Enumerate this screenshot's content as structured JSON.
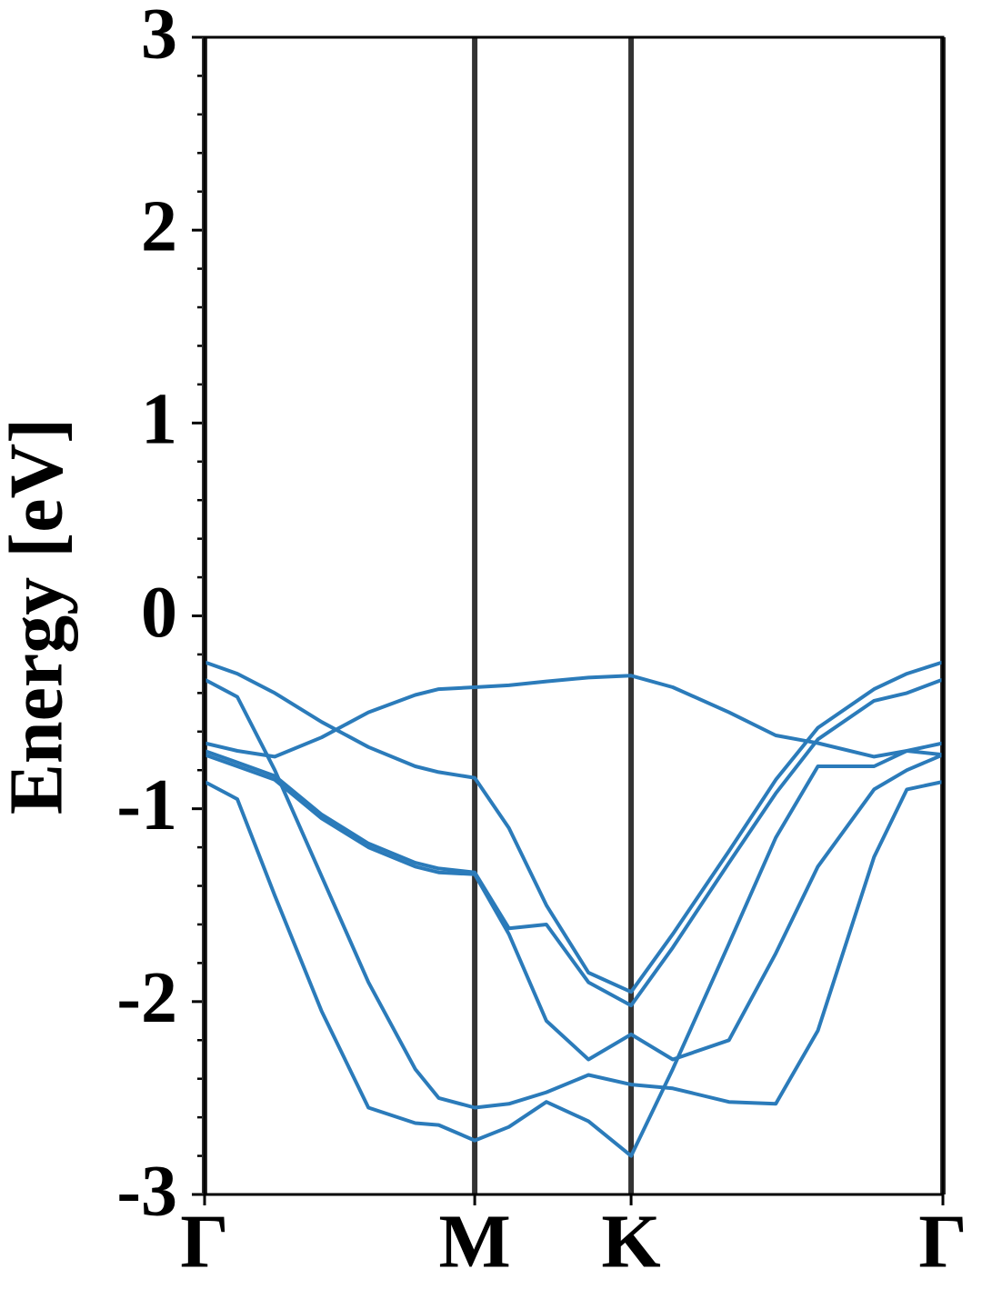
{
  "chart_data": {
    "type": "line",
    "ylabel": "Energy [eV]",
    "x": [
      0,
      0.07,
      0.15,
      0.25,
      0.35,
      0.45,
      0.5,
      0.577,
      0.65,
      0.73,
      0.82,
      0.911,
      1.0,
      1.12,
      1.22,
      1.31,
      1.43,
      1.5,
      1.577
    ],
    "series": [
      {
        "color": "#2b7bba",
        "values": [
          -0.24,
          -0.3,
          -0.4,
          -0.55,
          -0.68,
          -0.78,
          -0.81,
          -0.84,
          -1.1,
          -1.5,
          -1.85,
          -1.95,
          -1.65,
          -1.22,
          -0.85,
          -0.58,
          -0.38,
          -0.3,
          -0.24
        ]
      },
      {
        "color": "#2b7bba",
        "values": [
          -0.66,
          -0.7,
          -0.73,
          -0.63,
          -0.5,
          -0.41,
          -0.38,
          -0.37,
          -0.36,
          -0.34,
          -0.32,
          -0.31,
          -0.37,
          -0.5,
          -0.62,
          -0.66,
          -0.73,
          -0.7,
          -0.66
        ]
      },
      {
        "color": "#2b7bba",
        "values": [
          -0.33,
          -0.42,
          -0.8,
          -1.35,
          -1.9,
          -2.35,
          -2.5,
          -2.55,
          -2.53,
          -2.47,
          -2.38,
          -2.43,
          -2.45,
          -2.52,
          -2.53,
          -2.15,
          -1.25,
          -0.9,
          -0.86
        ]
      },
      {
        "color": "#2b7bba",
        "values": [
          -0.86,
          -0.95,
          -1.45,
          -2.05,
          -2.55,
          -2.63,
          -2.64,
          -2.72,
          -2.65,
          -2.52,
          -2.62,
          -2.8,
          -2.35,
          -1.7,
          -1.15,
          -0.78,
          -0.78,
          -0.7,
          -0.72
        ]
      },
      {
        "color": "#2b7bba",
        "values": [
          -0.72,
          -0.78,
          -0.85,
          -1.05,
          -1.2,
          -1.3,
          -1.33,
          -1.34,
          -1.65,
          -2.1,
          -2.3,
          -2.17,
          -2.3,
          -2.2,
          -1.75,
          -1.3,
          -0.9,
          -0.8,
          -0.72
        ]
      },
      {
        "color": "#2b7bba",
        "values": [
          -0.7,
          -0.76,
          -0.83,
          -1.03,
          -1.18,
          -1.28,
          -1.31,
          -1.33,
          -1.62,
          -1.6,
          -1.9,
          -2.02,
          -1.72,
          -1.28,
          -0.92,
          -0.64,
          -0.44,
          -0.4,
          -0.33
        ]
      }
    ],
    "xlim": [
      0,
      1.577
    ],
    "xticks": [
      {
        "value": 0,
        "label": "Γ"
      },
      {
        "value": 0.577,
        "label": "M"
      },
      {
        "value": 0.911,
        "label": "K"
      },
      {
        "value": 1.577,
        "label": "Γ"
      }
    ],
    "ylim": [
      -3,
      3
    ],
    "yticks": [
      -3,
      -2,
      -1,
      0,
      1,
      2,
      3
    ],
    "yminorticks": [
      -2.8,
      -2.6,
      -2.4,
      -2.2,
      -1.8,
      -1.6,
      -1.4,
      -1.2,
      -0.8,
      -0.6,
      -0.4,
      -0.2,
      0.2,
      0.4,
      0.6,
      0.8,
      1.2,
      1.4,
      1.6,
      1.8,
      2.2,
      2.4,
      2.6,
      2.8
    ],
    "vline_color": "#333333"
  }
}
